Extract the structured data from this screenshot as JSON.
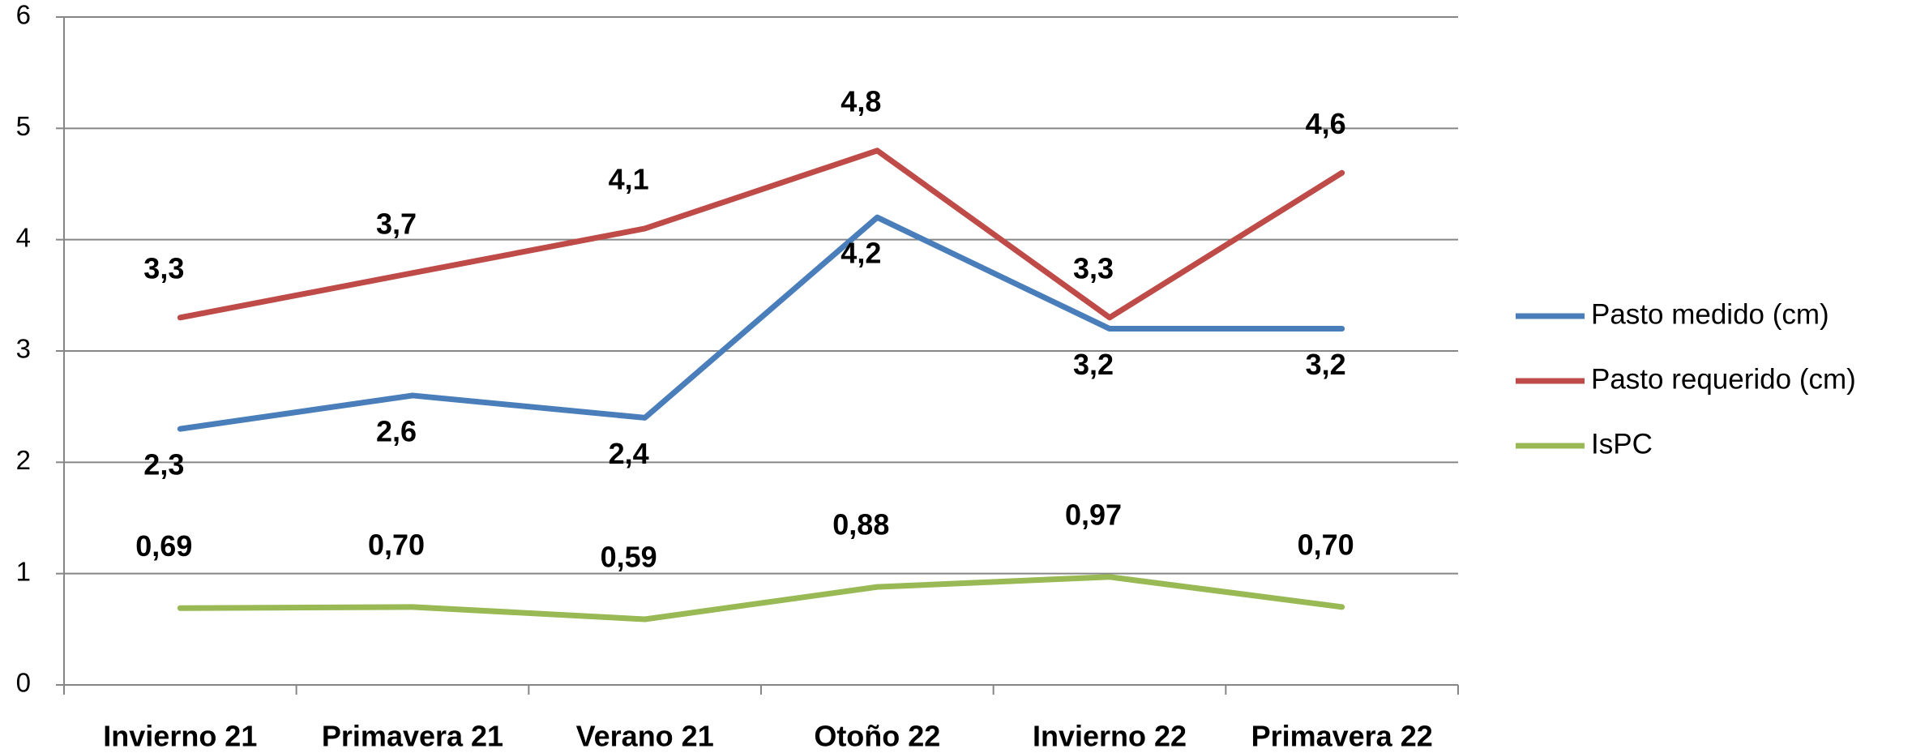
{
  "chart_data": {
    "type": "line",
    "categories": [
      "Invierno 21",
      "Primavera 21",
      "Verano 21",
      "Otoño 22",
      "Invierno 22",
      "Primavera 22"
    ],
    "ylim": [
      0,
      6
    ],
    "yticks": [
      0,
      1,
      2,
      3,
      4,
      5,
      6
    ],
    "grid": true,
    "legend": "right",
    "series": [
      {
        "name": "Pasto medido (cm)",
        "color": "#4a7ebb",
        "values": [
          2.3,
          2.6,
          2.4,
          4.2,
          3.2,
          3.2
        ],
        "value_labels": [
          "2,3",
          "2,6",
          "2,4",
          "4,2",
          "3,2",
          "3,2"
        ]
      },
      {
        "name": "Pasto requerido (cm)",
        "color": "#be4b48",
        "values": [
          3.3,
          3.7,
          4.1,
          4.8,
          3.3,
          4.6
        ],
        "value_labels": [
          "3,3",
          "3,7",
          "4,1",
          "4,8",
          "3,3",
          "4,6"
        ]
      },
      {
        "name": "IsPC",
        "color": "#98b954",
        "values": [
          0.69,
          0.7,
          0.59,
          0.88,
          0.97,
          0.7
        ],
        "value_labels": [
          "0,69",
          "0,70",
          "0,59",
          "0,88",
          "0,97",
          "0,70"
        ]
      }
    ]
  }
}
